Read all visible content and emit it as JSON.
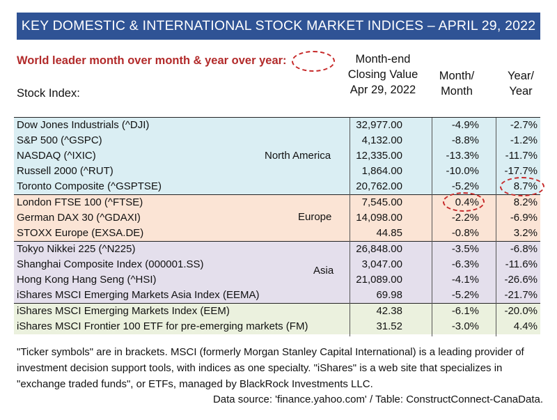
{
  "title": "KEY DOMESTIC & INTERNATIONAL STOCK MARKET INDICES – APRIL 29, 2022",
  "legend_note": "World leader month over month & year over year:",
  "headers": {
    "stock": "Stock Index:",
    "closing": [
      "Month-end",
      "Closing Value",
      "Apr 29, 2022"
    ],
    "mom": [
      "Month/",
      "Month"
    ],
    "yoy": [
      "Year/",
      "Year"
    ]
  },
  "colors": {
    "banner": "#2f5395",
    "north_america": "#daeef3",
    "europe": "#fbe4d5",
    "asia": "#e4dfec",
    "emerging": "#ebf1de",
    "highlight": "#c62828"
  },
  "regions": [
    {
      "label": "North America",
      "key": "na"
    },
    {
      "label": "Europe",
      "key": "eu"
    },
    {
      "label": "Asia",
      "key": "asia"
    },
    {
      "label": "",
      "key": "em"
    }
  ],
  "chart_data": {
    "type": "table",
    "columns": [
      "Stock Index:",
      "Month-end Closing Value Apr 29, 2022",
      "Month/ Month",
      "Year/ Year"
    ],
    "rows": [
      {
        "name": "Dow Jones Industrials (^DJI)",
        "close": "32,977.00",
        "mom": "-4.9%",
        "yoy": "-2.7%",
        "region": "na"
      },
      {
        "name": "S&P 500 (^GSPC)",
        "close": "4,132.00",
        "mom": "-8.8%",
        "yoy": "-1.2%",
        "region": "na"
      },
      {
        "name": "NASDAQ (^IXIC)",
        "close": "12,335.00",
        "mom": "-13.3%",
        "yoy": "-11.7%",
        "region": "na"
      },
      {
        "name": "Russell  2000 (^RUT)",
        "close": "1,864.00",
        "mom": "-10.0%",
        "yoy": "-17.7%",
        "region": "na"
      },
      {
        "name": "Toronto Composite (^GSPTSE)",
        "close": "20,762.00",
        "mom": "-5.2%",
        "yoy": "8.7%",
        "region": "na",
        "highlight": "yoy"
      },
      {
        "name": "London FTSE 100 (^FTSE)",
        "close": "7,545.00",
        "mom": "0.4%",
        "yoy": "8.2%",
        "region": "eu",
        "highlight": "mom"
      },
      {
        "name": "German DAX 30 (^GDAXI)",
        "close": "14,098.00",
        "mom": "-2.2%",
        "yoy": "-6.9%",
        "region": "eu"
      },
      {
        "name": "STOXX Europe (EXSA.DE)",
        "close": "44.85",
        "mom": "-0.8%",
        "yoy": "3.2%",
        "region": "eu"
      },
      {
        "name": "Tokyo Nikkei 225 (^N225)",
        "close": "26,848.00",
        "mom": "-3.5%",
        "yoy": "-6.8%",
        "region": "asia"
      },
      {
        "name": "Shanghai Composite Index (000001.SS)",
        "close": "3,047.00",
        "mom": "-6.3%",
        "yoy": "-11.6%",
        "region": "asia"
      },
      {
        "name": "Hong Kong Hang Seng (^HSI)",
        "close": "21,089.00",
        "mom": "-4.1%",
        "yoy": "-26.6%",
        "region": "asia"
      },
      {
        "name": "iShares MSCI Emerging Markets Asia Index (EEMA)",
        "close": "69.98",
        "mom": "-5.2%",
        "yoy": "-21.7%",
        "region": "asia"
      },
      {
        "name": "iShares MSCI Emerging Markets Index (EEM)",
        "close": "42.38",
        "mom": "-6.1%",
        "yoy": "-20.0%",
        "region": "em"
      },
      {
        "name": "iShares MSCI Frontier 100 ETF for pre-emerging markets (FM)",
        "close": "31.52",
        "mom": "-3.0%",
        "yoy": "4.4%",
        "region": "em"
      }
    ]
  },
  "footnote": "\"Ticker symbols\" are in brackets. MSCI (formerly Morgan Stanley Capital International) is a leading provider of investment decision support tools, with indices as one specialty. \"iShares\" is a web site that specializes in \"exchange traded funds\", or ETFs, managed by BlackRock Investments LLC.",
  "source": "Data source: 'finance.yahoo.com' / Table: ConstructConnect-CanaData."
}
